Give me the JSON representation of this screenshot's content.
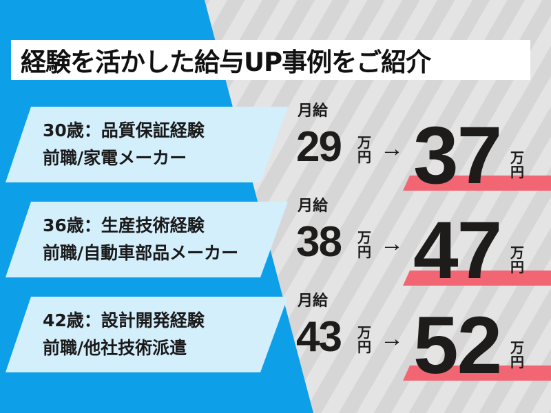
{
  "title": "経験を活かした給与UP事例をご紹介",
  "colors": {
    "blue": "#0e9fe9",
    "panel": "#d4effc",
    "accent_red": "#f26673"
  },
  "salary_label": "月給",
  "unit_top": "万",
  "unit_bottom": "円",
  "arrow": "→",
  "cases": [
    {
      "line1": "30歳：品質保証経験",
      "line2": "前職/家電メーカー",
      "before": "29",
      "after": "37"
    },
    {
      "line1": "36歳：生産技術経験",
      "line2": "前職/自動車部品メーカー",
      "before": "38",
      "after": "47"
    },
    {
      "line1": "42歳：設計開発経験",
      "line2": "前職/他社技術派遣",
      "before": "43",
      "after": "52"
    }
  ]
}
